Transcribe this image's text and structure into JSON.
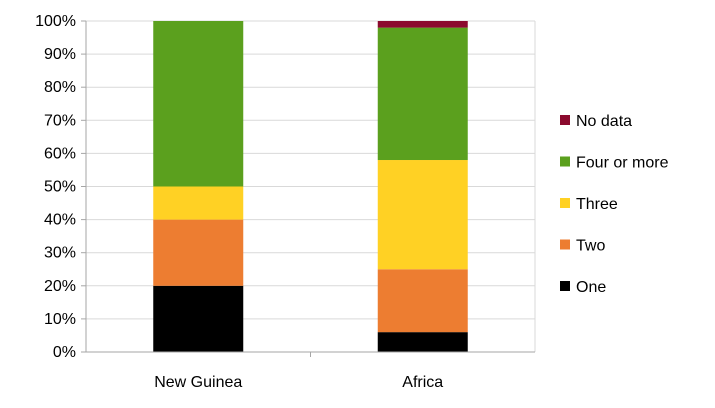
{
  "chart_data": {
    "type": "bar",
    "stacked": true,
    "percent": true,
    "categories": [
      "New Guinea",
      "Africa"
    ],
    "series": [
      {
        "name": "One",
        "color": "#000000",
        "values": [
          20,
          6
        ]
      },
      {
        "name": "Two",
        "color": "#ED7D31",
        "values": [
          20,
          19
        ]
      },
      {
        "name": "Three",
        "color": "#FFD124",
        "values": [
          10,
          33
        ]
      },
      {
        "name": "Four or more",
        "color": "#5BA01E",
        "values": [
          50,
          40
        ]
      },
      {
        "name": "No data",
        "color": "#8B0A2E",
        "values": [
          0,
          2
        ]
      }
    ],
    "ylim": [
      0,
      100
    ],
    "yticks": [
      "0%",
      "10%",
      "20%",
      "30%",
      "40%",
      "50%",
      "60%",
      "70%",
      "80%",
      "90%",
      "100%"
    ],
    "legend_order": [
      "No data",
      "Four or more",
      "Three",
      "Two",
      "One"
    ],
    "legend_position": "right",
    "grid": true,
    "title": "",
    "xlabel": "",
    "ylabel": ""
  }
}
